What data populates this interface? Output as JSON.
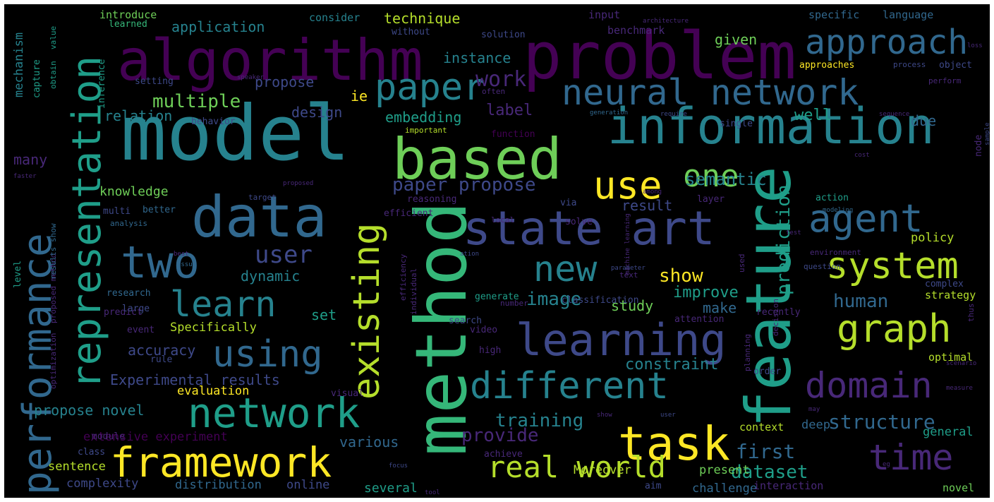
{
  "words": [
    {
      "t": "algorithm",
      "c": "c1"
    },
    {
      "t": "problem",
      "c": "c1"
    },
    {
      "t": "model",
      "c": "c5"
    },
    {
      "t": "information",
      "c": "c5"
    },
    {
      "t": "based",
      "c": "c8"
    },
    {
      "t": "data",
      "c": "c4"
    },
    {
      "t": "method",
      "c": "c7"
    },
    {
      "t": "feature",
      "c": "c6"
    },
    {
      "t": "state art",
      "c": "c3"
    },
    {
      "t": "neural network",
      "c": "c4"
    },
    {
      "t": "approach",
      "c": "c4"
    },
    {
      "t": "paper",
      "c": "c5"
    },
    {
      "t": "representation",
      "c": "c6"
    },
    {
      "t": "performance",
      "c": "c4"
    },
    {
      "t": "two",
      "c": "c4"
    },
    {
      "t": "network",
      "c": "c6"
    },
    {
      "t": "learning",
      "c": "c3"
    },
    {
      "t": "existing",
      "c": "c9"
    },
    {
      "t": "different",
      "c": "c5"
    },
    {
      "t": "framework",
      "c": "c10"
    },
    {
      "t": "task",
      "c": "c10"
    },
    {
      "t": "agent",
      "c": "c4"
    },
    {
      "t": "system",
      "c": "c9"
    },
    {
      "t": "graph",
      "c": "c9"
    },
    {
      "t": "domain",
      "c": "c2"
    },
    {
      "t": "time",
      "c": "c2"
    },
    {
      "t": "real world",
      "c": "c9"
    },
    {
      "t": "using",
      "c": "c4"
    },
    {
      "t": "learn",
      "c": "c5"
    },
    {
      "t": "user",
      "c": "c3"
    },
    {
      "t": "new",
      "c": "c5"
    },
    {
      "t": "use",
      "c": "c10"
    },
    {
      "t": "one",
      "c": "c8"
    },
    {
      "t": "semantic",
      "c": "c5"
    },
    {
      "t": "prediction",
      "c": "c6"
    },
    {
      "t": "multiple",
      "c": "c8"
    },
    {
      "t": "work",
      "c": "c2"
    },
    {
      "t": "label",
      "c": "c2"
    },
    {
      "t": "paper propose",
      "c": "c3"
    },
    {
      "t": "image",
      "c": "c5"
    },
    {
      "t": "show",
      "c": "c10"
    },
    {
      "t": "human",
      "c": "c4"
    },
    {
      "t": "structure",
      "c": "c4"
    },
    {
      "t": "dataset",
      "c": "c6"
    },
    {
      "t": "first",
      "c": "c4"
    },
    {
      "t": "training",
      "c": "c5"
    },
    {
      "t": "provide",
      "c": "c2"
    },
    {
      "t": "Experimental results",
      "c": "c3"
    },
    {
      "t": "propose novel",
      "c": "c5"
    },
    {
      "t": "accuracy",
      "c": "c3"
    },
    {
      "t": "constraint",
      "c": "c5"
    },
    {
      "t": "technique",
      "c": "c9"
    },
    {
      "t": "application",
      "c": "c5"
    },
    {
      "t": "instance",
      "c": "c5"
    },
    {
      "t": "propose",
      "c": "c3"
    },
    {
      "t": "relation",
      "c": "c5"
    },
    {
      "t": "design",
      "c": "c3"
    },
    {
      "t": "embedding",
      "c": "c6"
    },
    {
      "t": "knowledge",
      "c": "c8"
    },
    {
      "t": "dynamic",
      "c": "c5"
    },
    {
      "t": "improve",
      "c": "c6"
    },
    {
      "t": "make",
      "c": "c4"
    },
    {
      "t": "result",
      "c": "c3"
    },
    {
      "t": "study",
      "c": "c8"
    },
    {
      "t": "well",
      "c": "c6"
    },
    {
      "t": "due",
      "c": "c4"
    },
    {
      "t": "given",
      "c": "c8"
    },
    {
      "t": "ie",
      "c": "c10"
    },
    {
      "t": "many",
      "c": "c2"
    },
    {
      "t": "mechanism",
      "c": "c5"
    },
    {
      "t": "set",
      "c": "c6"
    },
    {
      "t": "Specifically",
      "c": "c9"
    },
    {
      "t": "evaluation",
      "c": "c10"
    },
    {
      "t": "several",
      "c": "c6"
    },
    {
      "t": "various",
      "c": "c4"
    },
    {
      "t": "extensive experiment",
      "c": "c1"
    },
    {
      "t": "sentence",
      "c": "c9"
    },
    {
      "t": "complexity",
      "c": "c3"
    },
    {
      "t": "distribution",
      "c": "c4"
    },
    {
      "t": "online",
      "c": "c3"
    },
    {
      "t": "challenge",
      "c": "c4"
    },
    {
      "t": "interaction",
      "c": "c2"
    },
    {
      "t": "novel",
      "c": "c8"
    },
    {
      "t": "Moreover",
      "c": "c9"
    },
    {
      "t": "present",
      "c": "c8"
    },
    {
      "t": "context",
      "c": "c9"
    },
    {
      "t": "deep",
      "c": "c4"
    },
    {
      "t": "general",
      "c": "c6"
    },
    {
      "t": "policy",
      "c": "c9"
    },
    {
      "t": "strategy",
      "c": "c9"
    },
    {
      "t": "optimal",
      "c": "c9"
    },
    {
      "t": "specific",
      "c": "c4"
    },
    {
      "t": "language",
      "c": "c4"
    },
    {
      "t": "input",
      "c": "c2"
    },
    {
      "t": "benchmark",
      "c": "c2"
    },
    {
      "t": "solution",
      "c": "c3"
    },
    {
      "t": "without",
      "c": "c3"
    },
    {
      "t": "consider",
      "c": "c5"
    },
    {
      "t": "introduce",
      "c": "c8"
    },
    {
      "t": "learned",
      "c": "c7"
    },
    {
      "t": "approaches",
      "c": "c10"
    },
    {
      "t": "setting",
      "c": "c3"
    },
    {
      "t": "often",
      "c": "c2"
    },
    {
      "t": "behavior",
      "c": "c3"
    },
    {
      "t": "important",
      "c": "c9"
    },
    {
      "t": "function",
      "c": "c1"
    },
    {
      "t": "single",
      "c": "c3"
    },
    {
      "t": "require",
      "c": "c3"
    },
    {
      "t": "generation",
      "c": "c4"
    },
    {
      "t": "target",
      "c": "c3"
    },
    {
      "t": "reasoning",
      "c": "c2"
    },
    {
      "t": "better",
      "c": "c4"
    },
    {
      "t": "multi",
      "c": "c3"
    },
    {
      "t": "analysis",
      "c": "c4"
    },
    {
      "t": "efficient",
      "c": "c2"
    },
    {
      "t": "local",
      "c": "c2"
    },
    {
      "t": "via",
      "c": "c3"
    },
    {
      "t": "solve",
      "c": "c2"
    },
    {
      "t": "action",
      "c": "c6"
    },
    {
      "t": "modeling",
      "c": "c4"
    },
    {
      "t": "layer",
      "c": "c2"
    },
    {
      "t": "environment",
      "c": "c2"
    },
    {
      "t": "question",
      "c": "c3"
    },
    {
      "t": "research",
      "c": "c4"
    },
    {
      "t": "predict",
      "c": "c2"
    },
    {
      "t": "generate",
      "c": "c6"
    },
    {
      "t": "number",
      "c": "c2"
    },
    {
      "t": "large",
      "c": "c3"
    },
    {
      "t": "classification",
      "c": "c3"
    },
    {
      "t": "attention",
      "c": "c2"
    },
    {
      "t": "recently",
      "c": "c2"
    },
    {
      "t": "complex",
      "c": "c3"
    },
    {
      "t": "text",
      "c": "c2"
    },
    {
      "t": "event",
      "c": "c2"
    },
    {
      "t": "search",
      "c": "c3"
    },
    {
      "t": "rule",
      "c": "c3"
    },
    {
      "t": "video",
      "c": "c2"
    },
    {
      "t": "high",
      "c": "c2"
    },
    {
      "t": "visual",
      "c": "c2"
    },
    {
      "t": "order",
      "c": "c3"
    },
    {
      "t": "module",
      "c": "c2"
    },
    {
      "t": "class",
      "c": "c3"
    },
    {
      "t": "achieve",
      "c": "c2"
    },
    {
      "t": "aim",
      "c": "c3"
    },
    {
      "t": "planning",
      "c": "c2"
    },
    {
      "t": "decision",
      "c": "c2"
    },
    {
      "t": "level",
      "c": "c6"
    },
    {
      "t": "capture",
      "c": "c6"
    },
    {
      "t": "obtain",
      "c": "c6"
    },
    {
      "t": "value",
      "c": "c6"
    },
    {
      "t": "inference",
      "c": "c6"
    },
    {
      "t": "node",
      "c": "c2"
    },
    {
      "t": "proposed method",
      "c": "c2"
    },
    {
      "t": "results show",
      "c": "c4"
    },
    {
      "t": "optimization",
      "c": "c2"
    },
    {
      "t": "efficiency",
      "c": "c2"
    },
    {
      "t": "individual",
      "c": "c2"
    },
    {
      "t": "thus",
      "c": "c2"
    },
    {
      "t": "used",
      "c": "c2"
    },
    {
      "t": "machine learning",
      "c": "c2"
    },
    {
      "t": "sample",
      "c": "c3"
    },
    {
      "t": "object",
      "c": "c3"
    },
    {
      "t": "perform",
      "c": "c2"
    },
    {
      "t": "parameter",
      "c": "c3"
    },
    {
      "t": "proposed",
      "c": "c2"
    },
    {
      "t": "faster",
      "c": "c2"
    },
    {
      "t": "architecture",
      "c": "c2"
    },
    {
      "t": "sequence",
      "c": "c2"
    },
    {
      "t": "scenario",
      "c": "c2"
    },
    {
      "t": "measure",
      "c": "c2"
    },
    {
      "t": "ation",
      "c": "c3"
    },
    {
      "t": "process",
      "c": "c3"
    },
    {
      "t": "best",
      "c": "c2"
    },
    {
      "t": "issue",
      "c": "c4"
    },
    {
      "t": "may",
      "c": "c2"
    },
    {
      "t": "focus",
      "c": "c3"
    },
    {
      "t": "loss",
      "c": "c2"
    },
    {
      "t": "speaker",
      "c": "c2"
    },
    {
      "t": "user",
      "c": "c3"
    },
    {
      "t": "show",
      "c": "c2"
    },
    {
      "t": "cost",
      "c": "c2"
    },
    {
      "t": "test",
      "c": "c2"
    },
    {
      "t": "among",
      "c": "c2"
    },
    {
      "t": "tool",
      "c": "c2"
    },
    {
      "t": "eg",
      "c": "c2"
    }
  ]
}
